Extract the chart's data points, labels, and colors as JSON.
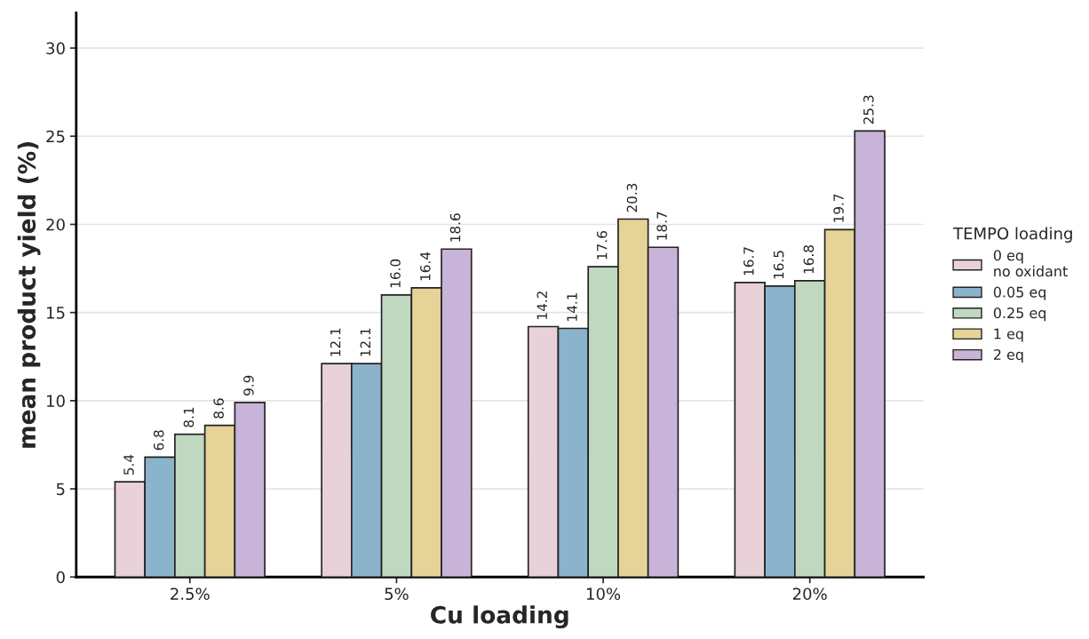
{
  "chart_data": {
    "type": "bar",
    "xlabel": "Cu loading",
    "ylabel": "mean product yield (%)",
    "legend_title": "TEMPO loading",
    "categories": [
      "2.5%",
      "5%",
      "10%",
      "20%"
    ],
    "series": [
      {
        "name": "0 eq\nno oxidant",
        "color": "#e8d1d8",
        "values": [
          5.4,
          12.1,
          14.2,
          16.7
        ],
        "value_labels": [
          "5.4",
          "12.1",
          "14.2",
          "16.7"
        ]
      },
      {
        "name": "0.05 eq",
        "color": "#8bb3cc",
        "values": [
          6.8,
          12.1,
          14.1,
          16.5
        ],
        "value_labels": [
          "6.8",
          "12.1",
          "14.1",
          "16.5"
        ]
      },
      {
        "name": "0.25 eq",
        "color": "#c0d8c0",
        "values": [
          8.1,
          16.0,
          17.6,
          16.8
        ],
        "value_labels": [
          "8.1",
          "16.0",
          "17.6",
          "16.8"
        ]
      },
      {
        "name": "1 eq",
        "color": "#e6d398",
        "values": [
          8.6,
          16.4,
          20.3,
          19.7
        ],
        "value_labels": [
          "8.6",
          "16.4",
          "20.3",
          "19.7"
        ]
      },
      {
        "name": "2 eq",
        "color": "#c8b4d8",
        "values": [
          9.9,
          18.6,
          18.7,
          25.3
        ],
        "value_labels": [
          "9.9",
          "18.6",
          "18.7",
          "25.3"
        ]
      }
    ],
    "ylim": [
      0,
      32
    ],
    "yticks": [
      0,
      5,
      10,
      15,
      20,
      25,
      30
    ],
    "grid": "y",
    "legend": "right"
  }
}
